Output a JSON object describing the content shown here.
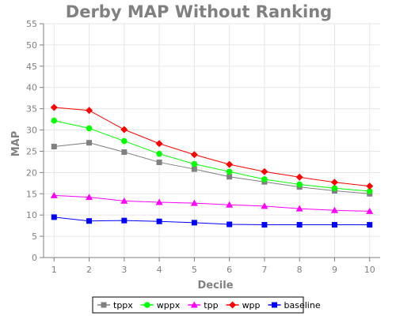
{
  "chart_data": {
    "type": "line",
    "title": "Derby MAP Without Ranking",
    "xlabel": "Decile",
    "ylabel": "MAP",
    "x": [
      1,
      2,
      3,
      4,
      5,
      6,
      7,
      8,
      9,
      10
    ],
    "xlim": [
      0.7,
      10.3
    ],
    "ylim": [
      0,
      55
    ],
    "y_ticks": [
      0,
      5,
      10,
      15,
      20,
      25,
      30,
      35,
      40,
      45,
      50,
      55
    ],
    "grid": true,
    "legend_position": "bottom",
    "series": [
      {
        "name": "tppx",
        "color": "#808080",
        "marker": "square",
        "values": [
          26.1,
          27.0,
          24.8,
          22.4,
          20.8,
          19.0,
          17.8,
          16.6,
          15.7,
          15.0
        ]
      },
      {
        "name": "wppx",
        "color": "#00ff00",
        "marker": "circle",
        "values": [
          32.2,
          30.4,
          27.4,
          24.4,
          22.0,
          20.2,
          18.4,
          17.2,
          16.3,
          15.6
        ]
      },
      {
        "name": "tpp",
        "color": "#ff00ff",
        "marker": "triangle",
        "values": [
          14.6,
          14.2,
          13.3,
          13.0,
          12.8,
          12.4,
          12.1,
          11.5,
          11.1,
          10.9
        ]
      },
      {
        "name": "wpp",
        "color": "#ff0000",
        "marker": "diamond",
        "values": [
          35.3,
          34.6,
          30.1,
          26.8,
          24.2,
          21.9,
          20.2,
          18.9,
          17.7,
          16.8
        ]
      },
      {
        "name": "baseline",
        "color": "#0000ff",
        "marker": "square",
        "values": [
          9.5,
          8.6,
          8.7,
          8.5,
          8.2,
          7.8,
          7.7,
          7.7,
          7.7,
          7.7
        ]
      }
    ]
  }
}
